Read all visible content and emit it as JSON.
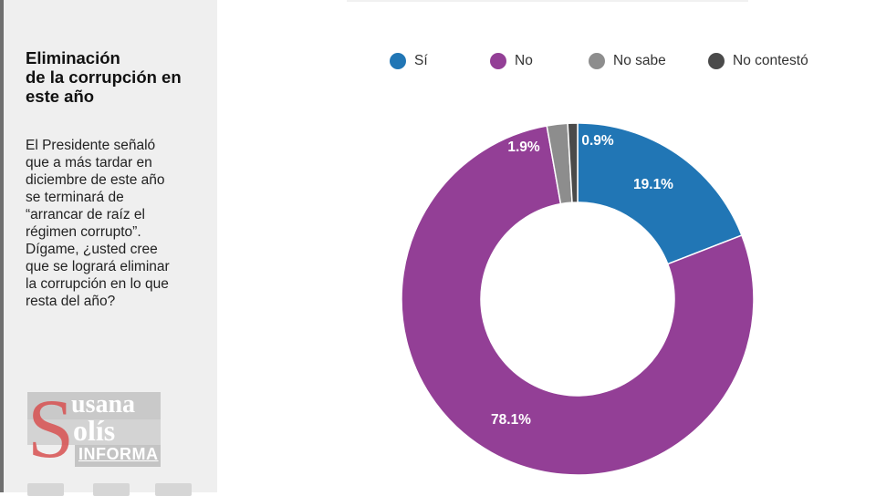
{
  "sidebar": {
    "title": "Eliminación\nde la corrupción en\neste año",
    "question": "El Presidente señaló\nque a más tardar en\ndiciembre de este año\nse terminará de\n“arrancar de raíz el\nrégimen corrupto”.\nDígame, ¿usted cree\nque se logrará eliminar\nla corrupción en lo que\nresta del año?"
  },
  "watermark": {
    "line1": "usana",
    "line2": "olís",
    "line3": "INFORMA"
  },
  "chart_data": {
    "type": "pie",
    "donut": true,
    "categories": [
      "Sí",
      "No",
      "No sabe",
      "No contestó"
    ],
    "values": [
      19.1,
      78.1,
      1.9,
      0.9
    ],
    "labels": [
      "19.1%",
      "78.1%",
      "1.9%",
      "0.9%"
    ],
    "colors": [
      "#2176b5",
      "#933f96",
      "#8d8d8d",
      "#4a4a4a"
    ],
    "label_colors": [
      "#ffffff",
      "#ffffff",
      "#ffffff",
      "#ffffff"
    ],
    "legend_position": "top",
    "start": "top, clockwise"
  }
}
